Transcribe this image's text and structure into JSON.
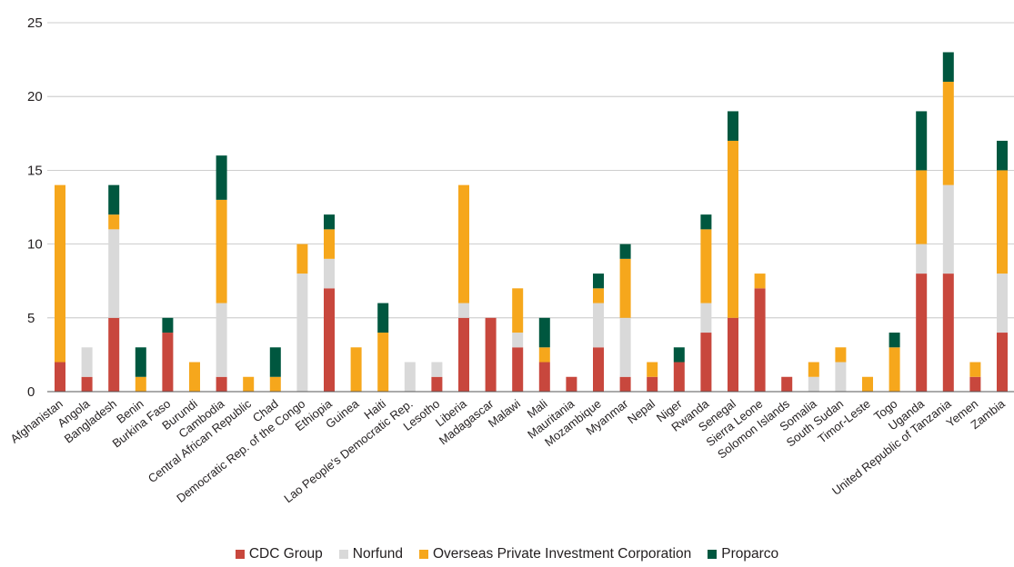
{
  "chart_data": {
    "type": "bar",
    "stacked": true,
    "categories": [
      "Afghanistan",
      "Angola",
      "Bangladesh",
      "Benin",
      "Burkina Faso",
      "Burundi",
      "Cambodia",
      "Central African Republic",
      "Chad",
      "Democratic Rep. of the Congo",
      "Ethiopia",
      "Guinea",
      "Haiti",
      "Lao People's Democratic Rep.",
      "Lesotho",
      "Liberia",
      "Madagascar",
      "Malawi",
      "Mali",
      "Mauritania",
      "Mozambique",
      "Myanmar",
      "Nepal",
      "Niger",
      "Rwanda",
      "Senegal",
      "Sierra Leone",
      "Solomon Islands",
      "Somalia",
      "South Sudan",
      "Timor-Leste",
      "Togo",
      "Uganda",
      "United Republic of Tanzania",
      "Yemen",
      "Zambia"
    ],
    "series": [
      {
        "name": "CDC Group",
        "color": "#c8473d",
        "values": [
          2,
          1,
          5,
          0,
          4,
          0,
          1,
          0,
          0,
          0,
          7,
          0,
          0,
          0,
          1,
          5,
          5,
          3,
          2,
          1,
          3,
          1,
          1,
          2,
          4,
          5,
          7,
          1,
          0,
          0,
          0,
          0,
          8,
          8,
          1,
          4
        ]
      },
      {
        "name": "Norfund",
        "color": "#d9d9d9",
        "values": [
          0,
          2,
          6,
          0,
          0,
          0,
          5,
          0,
          0,
          8,
          2,
          0,
          0,
          2,
          1,
          1,
          0,
          1,
          0,
          0,
          3,
          4,
          0,
          0,
          2,
          0,
          0,
          0,
          1,
          2,
          0,
          0,
          2,
          6,
          0,
          4
        ]
      },
      {
        "name": "Overseas Private Investment Corporation",
        "color": "#f6a71c",
        "values": [
          12,
          0,
          1,
          1,
          0,
          2,
          7,
          1,
          1,
          2,
          2,
          3,
          4,
          0,
          0,
          8,
          0,
          3,
          1,
          0,
          1,
          4,
          1,
          0,
          5,
          12,
          1,
          0,
          1,
          1,
          1,
          3,
          5,
          7,
          1,
          7
        ]
      },
      {
        "name": "Proparco",
        "color": "#00573f",
        "values": [
          0,
          0,
          2,
          2,
          1,
          0,
          3,
          0,
          2,
          0,
          1,
          0,
          2,
          0,
          0,
          0,
          0,
          0,
          2,
          0,
          1,
          1,
          0,
          1,
          1,
          2,
          0,
          0,
          0,
          0,
          0,
          1,
          4,
          2,
          0,
          2
        ]
      }
    ],
    "ylim": [
      0,
      25
    ],
    "yticks": [
      0,
      5,
      10,
      15,
      20,
      25
    ],
    "grid": true,
    "legend_position": "bottom"
  }
}
